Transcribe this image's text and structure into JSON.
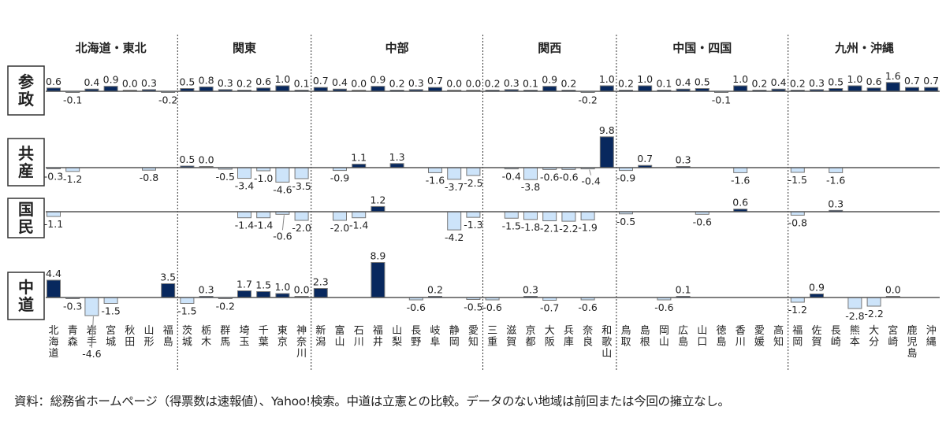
{
  "chart_data": {
    "type": "bar",
    "regions": [
      {
        "name": "北海道・東北",
        "count": 7
      },
      {
        "name": "関東",
        "count": 7
      },
      {
        "name": "中部",
        "count": 9
      },
      {
        "name": "関西",
        "count": 7
      },
      {
        "name": "中国・四国",
        "count": 9
      },
      {
        "name": "九州・沖縄",
        "count": 8
      }
    ],
    "categories": [
      "北海道",
      "青森",
      "岩手",
      "宮城",
      "秋田",
      "山形",
      "福島",
      "茨城",
      "栃木",
      "群馬",
      "埼玉",
      "千葉",
      "東京",
      "神奈川",
      "新潟",
      "富山",
      "石川",
      "福井",
      "山梨",
      "長野",
      "岐阜",
      "静岡",
      "愛知",
      "三重",
      "滋賀",
      "京都",
      "大阪",
      "兵庫",
      "奈良",
      "和歌山",
      "鳥取",
      "島根",
      "岡山",
      "広島",
      "山口",
      "徳島",
      "香川",
      "愛媛",
      "高知",
      "福岡",
      "佐賀",
      "長崎",
      "熊本",
      "大分",
      "宮崎",
      "鹿児島",
      "沖縄"
    ],
    "series": [
      {
        "name": "参政",
        "values": [
          0.6,
          -0.1,
          0.4,
          0.9,
          0.0,
          0.3,
          -0.2,
          0.5,
          0.8,
          0.3,
          0.2,
          0.6,
          1.0,
          0.1,
          0.7,
          0.4,
          0.0,
          0.9,
          0.2,
          0.3,
          0.7,
          0.0,
          0.0,
          0.2,
          0.3,
          0.1,
          0.9,
          0.2,
          -0.2,
          1.0,
          0.2,
          1.0,
          0.1,
          0.4,
          0.5,
          -0.1,
          1.0,
          0.2,
          0.4,
          0.2,
          0.3,
          0.5,
          1.0,
          0.6,
          1.6,
          0.7,
          0.7
        ]
      },
      {
        "name": "共産",
        "values": [
          -0.3,
          -1.2,
          null,
          null,
          null,
          -0.8,
          null,
          0.5,
          0.0,
          -0.5,
          -3.4,
          -1.0,
          -4.6,
          -3.5,
          null,
          -0.9,
          1.1,
          null,
          1.3,
          null,
          -1.6,
          -3.7,
          -2.5,
          null,
          -0.4,
          -3.8,
          -0.6,
          -0.6,
          -0.4,
          9.8,
          -0.9,
          0.7,
          null,
          0.3,
          null,
          null,
          -1.6,
          null,
          null,
          -1.5,
          null,
          -1.6,
          null,
          null,
          null,
          null,
          null
        ]
      },
      {
        "name": "国民",
        "values": [
          -1.1,
          null,
          null,
          null,
          null,
          null,
          null,
          null,
          null,
          null,
          -1.4,
          -1.4,
          -0.6,
          -2.0,
          null,
          -2.0,
          -1.4,
          1.2,
          null,
          null,
          null,
          -4.2,
          -1.3,
          null,
          -1.5,
          -1.8,
          -2.1,
          -2.2,
          -1.9,
          null,
          -0.5,
          null,
          null,
          null,
          -0.6,
          null,
          0.6,
          null,
          null,
          -0.8,
          null,
          0.3,
          null,
          null,
          null,
          null,
          null
        ]
      },
      {
        "name": "中道",
        "values": [
          4.4,
          -0.3,
          -4.6,
          -1.5,
          null,
          null,
          3.5,
          -1.5,
          0.3,
          -0.2,
          1.7,
          1.5,
          1.0,
          0.0,
          2.3,
          null,
          null,
          8.9,
          null,
          -0.6,
          0.2,
          null,
          -0.5,
          -0.6,
          null,
          0.3,
          -0.7,
          null,
          -0.6,
          null,
          null,
          null,
          -0.6,
          0.1,
          null,
          null,
          null,
          null,
          null,
          -1.2,
          0.9,
          null,
          -2.8,
          -2.2,
          0.0,
          null,
          null
        ]
      }
    ],
    "colors": {
      "positive": "#08285e",
      "negative": "#cde4fa",
      "outline": "#777777",
      "baseline": "#555555"
    }
  },
  "footer": "資料：総務省ホームページ（得票数は速報値）、Yahoo!検索。中道は立憲との比較。データのない地域は前回または今回の擁立なし。"
}
